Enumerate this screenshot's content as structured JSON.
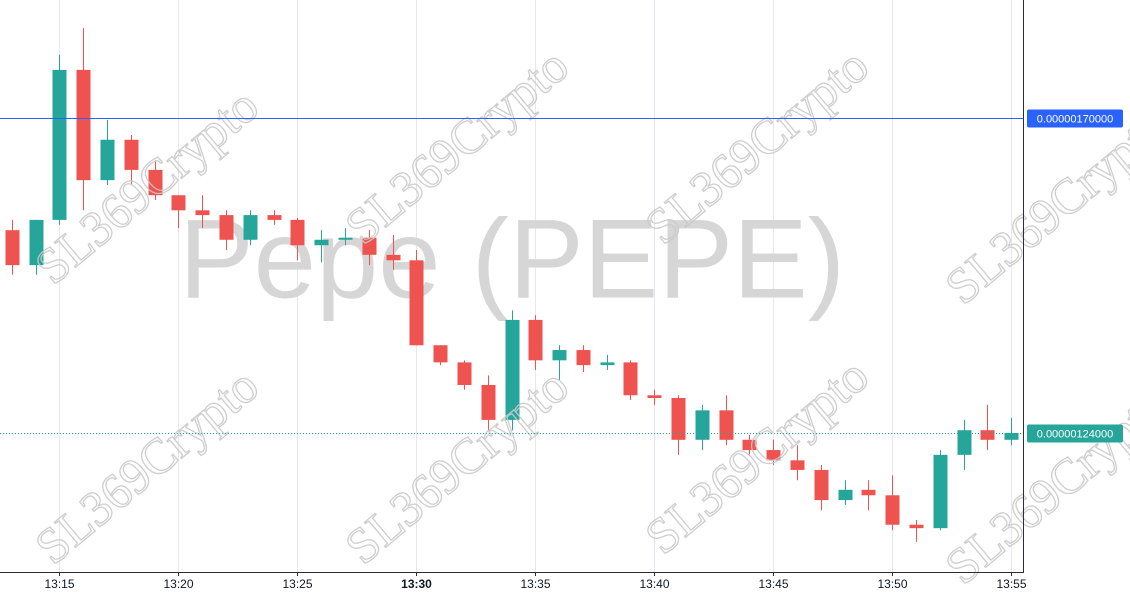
{
  "chart_data": {
    "type": "candlestick",
    "symbol_watermark": "Pepe (PEPE)",
    "watermark": "SL369Crypto",
    "x": [
      "13:13",
      "13:14",
      "13:15",
      "13:16",
      "13:17",
      "13:18",
      "13:19",
      "13:20",
      "13:21",
      "13:22",
      "13:23",
      "13:24",
      "13:25",
      "13:26",
      "13:27",
      "13:28",
      "13:29",
      "13:30",
      "13:31",
      "13:32",
      "13:33",
      "13:34",
      "13:35",
      "13:36",
      "13:37",
      "13:38",
      "13:39",
      "13:40",
      "13:41",
      "13:42",
      "13:43",
      "13:44",
      "13:45",
      "13:46",
      "13:47",
      "13:48",
      "13:49",
      "13:50",
      "13:51",
      "13:52",
      "13:53",
      "13:54",
      "13:55"
    ],
    "open": [
      1.536e-06,
      1.485e-06,
      1.551e-06,
      1.77e-06,
      1.609e-06,
      1.668e-06,
      1.624e-06,
      1.587e-06,
      1.565e-06,
      1.558e-06,
      1.522e-06,
      1.558e-06,
      1.551e-06,
      1.514e-06,
      1.522e-06,
      1.525e-06,
      1.5e-06,
      1.492e-06,
      1.368e-06,
      1.343e-06,
      1.31e-06,
      1.259e-06,
      1.405e-06,
      1.346e-06,
      1.361e-06,
      1.339e-06,
      1.343e-06,
      1.295e-06,
      1.291e-06,
      1.23e-06,
      1.273e-06,
      1.23e-06,
      1.215e-06,
      1.2e-06,
      1.186e-06,
      1.142e-06,
      1.157e-06,
      1.149e-06,
      1.106e-06,
      1.101e-06,
      1.208e-06,
      1.244e-06,
      1.23e-06
    ],
    "high": [
      1.551e-06,
      1.551e-06,
      1.792e-06,
      1.831e-06,
      1.697e-06,
      1.675e-06,
      1.638e-06,
      1.587e-06,
      1.587e-06,
      1.565e-06,
      1.565e-06,
      1.565e-06,
      1.554e-06,
      1.536e-06,
      1.539e-06,
      1.536e-06,
      1.529e-06,
      1.507e-06,
      1.368e-06,
      1.346e-06,
      1.324e-06,
      1.419e-06,
      1.412e-06,
      1.368e-06,
      1.368e-06,
      1.354e-06,
      1.346e-06,
      1.303e-06,
      1.295e-06,
      1.281e-06,
      1.295e-06,
      1.237e-06,
      1.23e-06,
      1.222e-06,
      1.193e-06,
      1.171e-06,
      1.171e-06,
      1.178e-06,
      1.113e-06,
      1.215e-06,
      1.259e-06,
      1.281e-06,
      1.262e-06
    ],
    "low": [
      1.471e-06,
      1.471e-06,
      1.544e-06,
      1.565e-06,
      1.602e-06,
      1.602e-06,
      1.58e-06,
      1.539e-06,
      1.539e-06,
      1.507e-06,
      1.514e-06,
      1.544e-06,
      1.492e-06,
      1.489e-06,
      1.514e-06,
      1.485e-06,
      1.478e-06,
      1.368e-06,
      1.339e-06,
      1.303e-06,
      1.244e-06,
      1.244e-06,
      1.332e-06,
      1.317e-06,
      1.329e-06,
      1.332e-06,
      1.288e-06,
      1.281e-06,
      1.208e-06,
      1.215e-06,
      1.222e-06,
      1.208e-06,
      1.193e-06,
      1.171e-06,
      1.127e-06,
      1.135e-06,
      1.127e-06,
      1.098e-06,
      1.081e-06,
      1.098e-06,
      1.186e-06,
      1.215e-06,
      1.222e-06
    ],
    "close": [
      1.485e-06,
      1.551e-06,
      1.77e-06,
      1.609e-06,
      1.668e-06,
      1.624e-06,
      1.587e-06,
      1.565e-06,
      1.558e-06,
      1.522e-06,
      1.558e-06,
      1.551e-06,
      1.514e-06,
      1.522e-06,
      1.525e-06,
      1.5e-06,
      1.492e-06,
      1.368e-06,
      1.343e-06,
      1.31e-06,
      1.259e-06,
      1.405e-06,
      1.346e-06,
      1.361e-06,
      1.339e-06,
      1.343e-06,
      1.295e-06,
      1.291e-06,
      1.23e-06,
      1.273e-06,
      1.23e-06,
      1.215e-06,
      1.2e-06,
      1.186e-06,
      1.142e-06,
      1.157e-06,
      1.149e-06,
      1.106e-06,
      1.101e-06,
      1.208e-06,
      1.244e-06,
      1.23e-06,
      1.24e-06
    ],
    "up_color": "#26a69a",
    "down_color": "#ef5350",
    "ylim": [
      1.037e-06,
      1.872e-06
    ],
    "xticks": [
      "13:15",
      "13:20",
      "13:25",
      "13:30",
      "13:35",
      "13:40",
      "13:45",
      "13:50",
      "13:55"
    ],
    "price_lines": [
      {
        "value": 1.7e-06,
        "label": "0.00000170000",
        "color": "#2962ff",
        "style": "solid"
      },
      {
        "value": 1.24e-06,
        "label": "0.00000124000",
        "color": "#26a69a",
        "style": "dotted"
      }
    ],
    "grid": true
  }
}
